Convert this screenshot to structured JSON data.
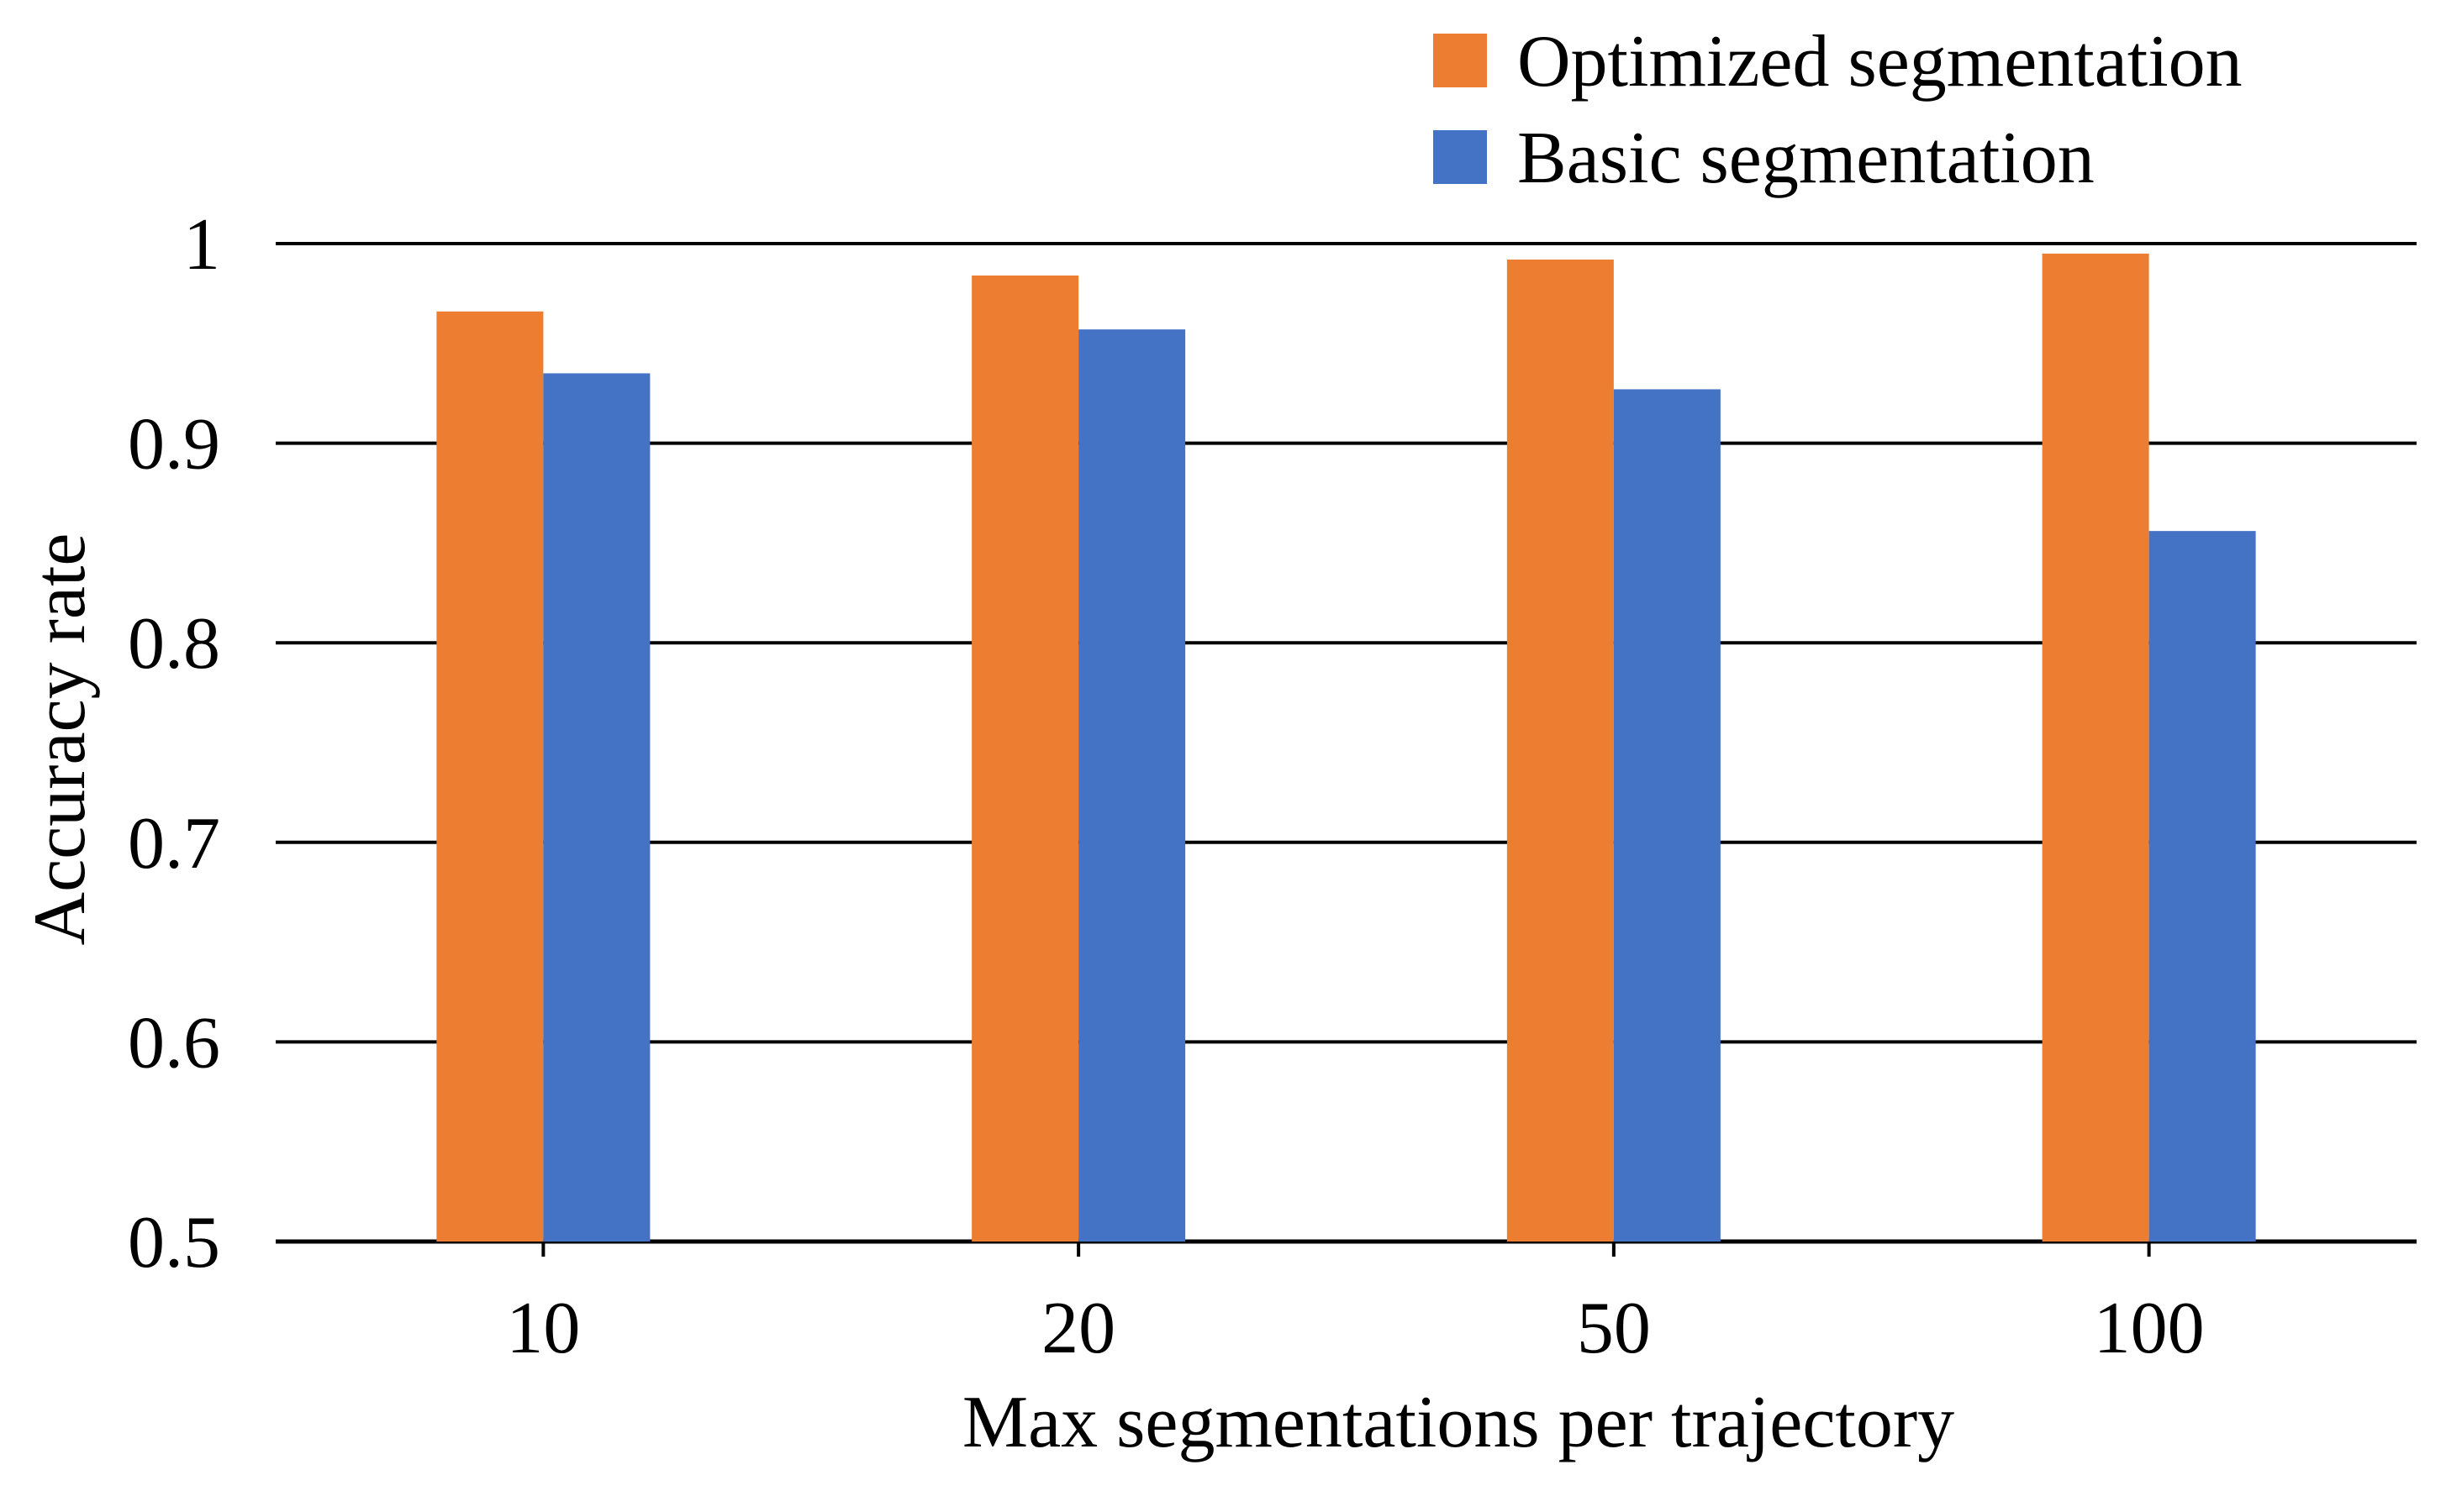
{
  "chart_data": {
    "type": "bar",
    "title": "",
    "xlabel": "Max segmentations per trajectory",
    "ylabel": "Accuracy rate",
    "categories": [
      "10",
      "20",
      "50",
      "100"
    ],
    "ylim": [
      0.5,
      1.0
    ],
    "yticks": [
      0.5,
      0.6,
      0.7,
      0.8,
      0.9,
      1.0
    ],
    "ytick_labels": [
      "0.5",
      "0.6",
      "0.7",
      "0.8",
      "0.9",
      "1"
    ],
    "grid": true,
    "legend_position": "top-right",
    "series": [
      {
        "name": "Optimized segmentation",
        "color": "#ED7D31",
        "values": [
          0.966,
          0.984,
          0.992,
          0.995
        ]
      },
      {
        "name": "Basic segmentation",
        "color": "#4472C4",
        "values": [
          0.935,
          0.957,
          0.927,
          0.856
        ]
      }
    ]
  }
}
